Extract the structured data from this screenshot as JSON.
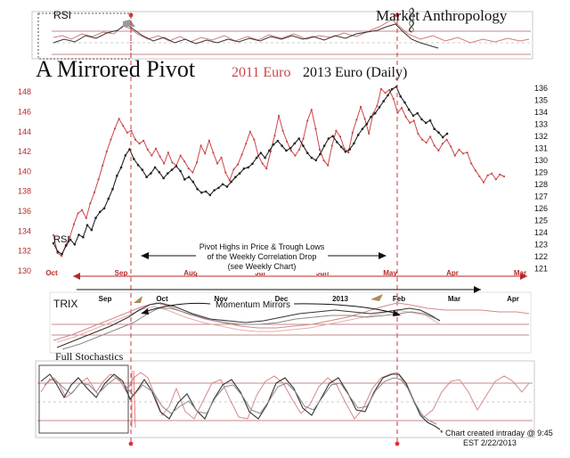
{
  "header": {
    "brand_left": "Market",
    "brand_right": "Anthropology",
    "title_main": "A Mirrored Pivot",
    "title_red": "2011 Euro",
    "title_black": "2013 Euro (Daily)"
  },
  "panels": {
    "rsi": "RSI",
    "rsi_lower": "RSI",
    "trix": "TRIX",
    "stoch": "Full Stochastics"
  },
  "annotations": {
    "pivot_line1": "Pivot Highs in Price & Trough Lows",
    "pivot_line2": "of the Weekly Correlation Drop",
    "pivot_line3": "(see Weekly Chart)",
    "momentum": "Momentum Mirrors",
    "footnote_line1": "* Chart created intraday @ 9:45",
    "footnote_line2": "EST 2/22/2013"
  },
  "colors": {
    "euro_2011": "#c9474a",
    "euro_2013": "#222222",
    "axis_red": "#b52a2a",
    "guide_red": "#d9323a"
  },
  "chart_data": {
    "type": "line",
    "left_axis": {
      "series": "2011 Euro",
      "ticks": [
        130,
        132,
        134,
        136,
        138,
        140,
        142,
        144,
        146,
        148
      ],
      "ylim": [
        130,
        149
      ]
    },
    "right_axis": {
      "series": "2013 Euro",
      "ticks": [
        121,
        122,
        123,
        124,
        125,
        126,
        127,
        128,
        129,
        130,
        131,
        132,
        133,
        134,
        135,
        136
      ],
      "ylim": [
        120.8,
        136.5
      ]
    },
    "x_labels_2011": [
      "Oct",
      "Sep",
      "Aug",
      "Jul",
      "Jun",
      "May",
      "Apr",
      "Mar"
    ],
    "x_labels_2013": [
      "Sep",
      "Oct",
      "Nov",
      "Dec",
      "2013",
      "Feb",
      "Mar",
      "Apr"
    ],
    "series": [
      {
        "name": "2011 Euro",
        "values": [
          133.6,
          131.8,
          131.5,
          132.6,
          133.4,
          134.7,
          135.8,
          136.1,
          135.3,
          136.8,
          137.9,
          139.2,
          140.6,
          142.0,
          143.2,
          144.3,
          145.3,
          144.6,
          143.9,
          144.1,
          143.2,
          142.8,
          143.1,
          142.2,
          141.6,
          142.3,
          141.5,
          140.8,
          141.9,
          140.9,
          140.6,
          141.6,
          141.0,
          140.3,
          139.9,
          140.9,
          142.6,
          141.8,
          143.1,
          141.9,
          140.8,
          141.4,
          139.9,
          139.1,
          140.2,
          140.7,
          141.7,
          142.8,
          144.0,
          143.2,
          141.6,
          140.8,
          140.3,
          142.0,
          143.6,
          145.6,
          144.1,
          143.0,
          142.1,
          141.6,
          142.2,
          143.3,
          145.1,
          146.2,
          144.3,
          142.2,
          141.1,
          140.6,
          142.6,
          144.1,
          143.5,
          142.3,
          141.9,
          143.9,
          145.2,
          146.5,
          145.3,
          143.8,
          145.8,
          146.6,
          148.3,
          147.9,
          148.2,
          147.3,
          145.9,
          146.4,
          145.5,
          144.9,
          145.1,
          143.8,
          143.2,
          142.9,
          143.5,
          142.6,
          142.1,
          142.8,
          143.2,
          142.5,
          141.6,
          142.2,
          141.8,
          141.9,
          140.8,
          140.1,
          139.5,
          138.9,
          139.6,
          139.8,
          139.2,
          139.7,
          139.5
        ],
        "units": "index value"
      },
      {
        "name": "2013 Euro",
        "values": [
          123.1,
          122.4,
          122.2,
          122.9,
          123.4,
          123.0,
          123.8,
          123.6,
          124.6,
          124.2,
          125.2,
          125.7,
          126.0,
          126.8,
          127.6,
          128.7,
          129.4,
          130.4,
          130.9,
          130.1,
          129.6,
          129.2,
          128.6,
          128.9,
          129.4,
          129.0,
          128.5,
          128.9,
          129.2,
          129.5,
          129.1,
          128.4,
          128.6,
          128.2,
          127.6,
          127.3,
          127.4,
          127.1,
          127.5,
          127.7,
          128.0,
          127.8,
          128.2,
          128.6,
          128.9,
          129.3,
          129.4,
          129.7,
          130.2,
          130.6,
          130.2,
          130.8,
          131.3,
          131.6,
          131.2,
          130.8,
          131.0,
          131.4,
          131.8,
          131.2,
          130.6,
          130.2,
          130.0,
          130.5,
          131.2,
          131.8,
          132.0,
          131.5,
          131.1,
          130.7,
          130.9,
          131.4,
          132.1,
          132.6,
          133.0,
          133.6,
          133.9,
          134.4,
          134.9,
          135.4,
          135.9,
          136.1,
          135.3,
          134.8,
          134.2,
          133.7,
          133.9,
          133.4,
          133.1,
          133.3,
          132.6,
          132.3,
          131.9,
          132.2
        ],
        "units": "cents"
      }
    ]
  }
}
